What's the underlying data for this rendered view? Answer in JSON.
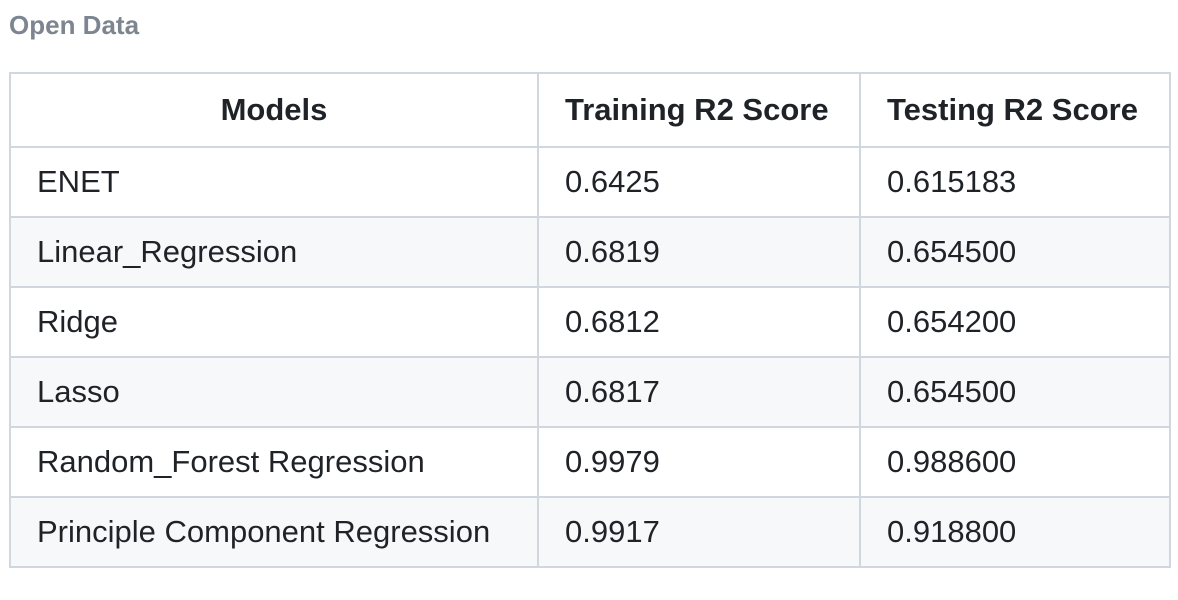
{
  "heading": "Open Data",
  "table": {
    "headers": [
      "Models",
      "Training R2 Score",
      "Testing R2 Score"
    ],
    "rows": [
      [
        "ENET",
        "0.6425",
        "0.615183"
      ],
      [
        "Linear_Regression",
        "0.6819",
        "0.654500"
      ],
      [
        "Ridge",
        "0.6812",
        "0.654200"
      ],
      [
        "Lasso",
        "0.6817",
        "0.654500"
      ],
      [
        "Random_Forest Regression",
        "0.9979",
        "0.988600"
      ],
      [
        "Principle Component Regression",
        "0.9917",
        "0.918800"
      ]
    ]
  }
}
